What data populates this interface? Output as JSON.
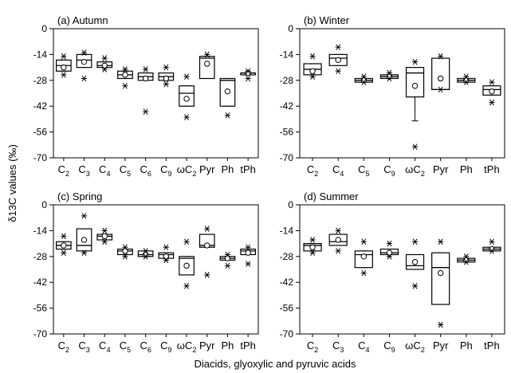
{
  "figure": {
    "ylabel": "δ13C values (‰)",
    "xlabel": "Diacids, glyoxylic and pyruvic acids"
  },
  "chart_data": [
    {
      "type": "box",
      "title": "(a) Autumn",
      "ylim": [
        -70,
        0
      ],
      "yticks": [
        0,
        -14,
        -28,
        -42,
        -56,
        -70
      ],
      "categories": [
        "C2",
        "C3",
        "C4",
        "C5",
        "C6",
        "C9",
        "ωC2",
        "Pyr",
        "Ph",
        "tPh"
      ],
      "boxes": [
        {
          "q1": -23,
          "median": -20,
          "q3": -17,
          "mean": -21,
          "whisker_low": -23,
          "whisker_high": -17,
          "outliers": [
            -25,
            -15
          ]
        },
        {
          "q1": -21,
          "median": -17,
          "q3": -14,
          "mean": -18,
          "whisker_low": -21,
          "whisker_high": -14,
          "outliers": [
            -27,
            -13
          ]
        },
        {
          "q1": -21,
          "median": -20,
          "q3": -18,
          "mean": -20,
          "whisker_low": -21,
          "whisker_high": -18,
          "outliers": [
            -22,
            -16
          ]
        },
        {
          "q1": -27,
          "median": -25,
          "q3": -23,
          "mean": -25,
          "whisker_low": -27,
          "whisker_high": -23,
          "outliers": [
            -31,
            -22
          ]
        },
        {
          "q1": -28,
          "median": -26,
          "q3": -24,
          "mean": -27,
          "whisker_low": -28,
          "whisker_high": -24,
          "outliers": [
            -45,
            -22
          ]
        },
        {
          "q1": -28,
          "median": -26,
          "q3": -24,
          "mean": -27,
          "whisker_low": -28,
          "whisker_high": -24,
          "outliers": [
            -30,
            -21
          ]
        },
        {
          "q1": -42,
          "median": -35,
          "q3": -31,
          "mean": -38,
          "whisker_low": -42,
          "whisker_high": -31,
          "outliers": [
            -48,
            -26
          ]
        },
        {
          "q1": -27,
          "median": -16,
          "q3": -15,
          "mean": -19,
          "whisker_low": -27,
          "whisker_high": -15,
          "outliers": [
            -14
          ]
        },
        {
          "q1": -42,
          "median": -28,
          "q3": -27,
          "mean": -34,
          "whisker_low": -42,
          "whisker_high": -27,
          "outliers": [
            -47
          ]
        },
        {
          "q1": -25,
          "median": -24,
          "q3": -24,
          "mean": -24,
          "whisker_low": -25,
          "whisker_high": -24,
          "outliers": [
            -27,
            -23
          ]
        }
      ]
    },
    {
      "type": "box",
      "title": "(b) Winter",
      "ylim": [
        -70,
        0
      ],
      "yticks": [
        0,
        -14,
        -28,
        -42,
        -56,
        -70
      ],
      "categories": [
        "C2",
        "C4",
        "C5",
        "C9",
        "ωC2",
        "Pyr",
        "Ph",
        "tPh"
      ],
      "boxes": [
        {
          "q1": -25,
          "median": -22,
          "q3": -19,
          "mean": -23,
          "whisker_low": -25,
          "whisker_high": -19,
          "outliers": [
            -26,
            -15
          ]
        },
        {
          "q1": -20,
          "median": -16,
          "q3": -14,
          "mean": -17,
          "whisker_low": -20,
          "whisker_high": -14,
          "outliers": [
            -23,
            -10
          ]
        },
        {
          "q1": -29,
          "median": -28,
          "q3": -27,
          "mean": -28,
          "whisker_low": -29,
          "whisker_high": -27,
          "outliers": [
            -29,
            -26
          ]
        },
        {
          "q1": -27,
          "median": -26,
          "q3": -25,
          "mean": -26,
          "whisker_low": -27,
          "whisker_high": -25,
          "outliers": [
            -27,
            -24
          ]
        },
        {
          "q1": -37,
          "median": -24,
          "q3": -21,
          "mean": -31,
          "whisker_low": -50,
          "whisker_high": -21,
          "outliers": [
            -64,
            -18
          ]
        },
        {
          "q1": -33,
          "median": -33,
          "q3": -16,
          "mean": -27,
          "whisker_low": -33,
          "whisker_high": -16,
          "outliers": [
            -33,
            -15
          ]
        },
        {
          "q1": -29,
          "median": -28,
          "q3": -27,
          "mean": -28,
          "whisker_low": -29,
          "whisker_high": -27,
          "outliers": [
            -29,
            -26
          ]
        },
        {
          "q1": -36,
          "median": -33,
          "q3": -31,
          "mean": -34,
          "whisker_low": -36,
          "whisker_high": -31,
          "outliers": [
            -40,
            -29
          ]
        }
      ]
    },
    {
      "type": "box",
      "title": "(c) Spring",
      "ylim": [
        -70,
        0
      ],
      "yticks": [
        0,
        -14,
        -28,
        -42,
        -56,
        -70
      ],
      "categories": [
        "C2",
        "C3",
        "C4",
        "C5",
        "C6",
        "C9",
        "ωC2",
        "Pyr",
        "Ph",
        "tPh"
      ],
      "boxes": [
        {
          "q1": -24,
          "median": -22,
          "q3": -20,
          "mean": -22,
          "whisker_low": -24,
          "whisker_high": -20,
          "outliers": [
            -26,
            -17
          ]
        },
        {
          "q1": -25,
          "median": -22,
          "q3": -13,
          "mean": -19,
          "whisker_low": -25,
          "whisker_high": -13,
          "outliers": [
            -26,
            -6
          ]
        },
        {
          "q1": -19,
          "median": -17,
          "q3": -16,
          "mean": -17,
          "whisker_low": -19,
          "whisker_high": -16,
          "outliers": [
            -20,
            -14
          ]
        },
        {
          "q1": -27,
          "median": -25,
          "q3": -24,
          "mean": -25,
          "whisker_low": -27,
          "whisker_high": -24,
          "outliers": [
            -28,
            -23
          ]
        },
        {
          "q1": -28,
          "median": -27,
          "q3": -25,
          "mean": -27,
          "whisker_low": -28,
          "whisker_high": -25,
          "outliers": [
            -28,
            -25
          ]
        },
        {
          "q1": -29,
          "median": -27,
          "q3": -26,
          "mean": -28,
          "whisker_low": -29,
          "whisker_high": -26,
          "outliers": [
            -30,
            -23
          ]
        },
        {
          "q1": -38,
          "median": -29,
          "q3": -28,
          "mean": -33,
          "whisker_low": -38,
          "whisker_high": -28,
          "outliers": [
            -44,
            -20
          ]
        },
        {
          "q1": -23,
          "median": -22,
          "q3": -16,
          "mean": -22,
          "whisker_low": -23,
          "whisker_high": -16,
          "outliers": [
            -38,
            -13
          ]
        },
        {
          "q1": -30,
          "median": -29,
          "q3": -28,
          "mean": -29,
          "whisker_low": -30,
          "whisker_high": -28,
          "outliers": [
            -33,
            -27
          ]
        },
        {
          "q1": -27,
          "median": -25,
          "q3": -24,
          "mean": -26,
          "whisker_low": -27,
          "whisker_high": -24,
          "outliers": [
            -32,
            -23
          ]
        }
      ]
    },
    {
      "type": "box",
      "title": "(d) Summer",
      "ylim": [
        -70,
        0
      ],
      "yticks": [
        0,
        -14,
        -28,
        -42,
        -56,
        -70
      ],
      "categories": [
        "C2",
        "C3",
        "C4",
        "C9",
        "ωC2",
        "Pyr",
        "Ph",
        "tPh"
      ],
      "boxes": [
        {
          "q1": -25,
          "median": -22,
          "q3": -21,
          "mean": -23,
          "whisker_low": -25,
          "whisker_high": -21,
          "outliers": [
            -26,
            -19
          ]
        },
        {
          "q1": -22,
          "median": -20,
          "q3": -16,
          "mean": -19,
          "whisker_low": -22,
          "whisker_high": -16,
          "outliers": [
            -25,
            -14
          ]
        },
        {
          "q1": -34,
          "median": -27,
          "q3": -25,
          "mean": -28,
          "whisker_low": -34,
          "whisker_high": -25,
          "outliers": [
            -37,
            -20
          ]
        },
        {
          "q1": -27,
          "median": -26,
          "q3": -24,
          "mean": -26,
          "whisker_low": -27,
          "whisker_high": -24,
          "outliers": [
            -28,
            -21
          ]
        },
        {
          "q1": -35,
          "median": -33,
          "q3": -27,
          "mean": -31,
          "whisker_low": -35,
          "whisker_high": -27,
          "outliers": [
            -44,
            -20
          ]
        },
        {
          "q1": -54,
          "median": -34,
          "q3": -26,
          "mean": -37,
          "whisker_low": -54,
          "whisker_high": -26,
          "outliers": [
            -65,
            -20
          ]
        },
        {
          "q1": -31,
          "median": -30,
          "q3": -29,
          "mean": -30,
          "whisker_low": -31,
          "whisker_high": -29,
          "outliers": [
            -31,
            -28
          ]
        },
        {
          "q1": -25,
          "median": -24,
          "q3": -23,
          "mean": -24,
          "whisker_low": -25,
          "whisker_high": -23,
          "outliers": [
            -25,
            -20
          ]
        }
      ]
    }
  ]
}
